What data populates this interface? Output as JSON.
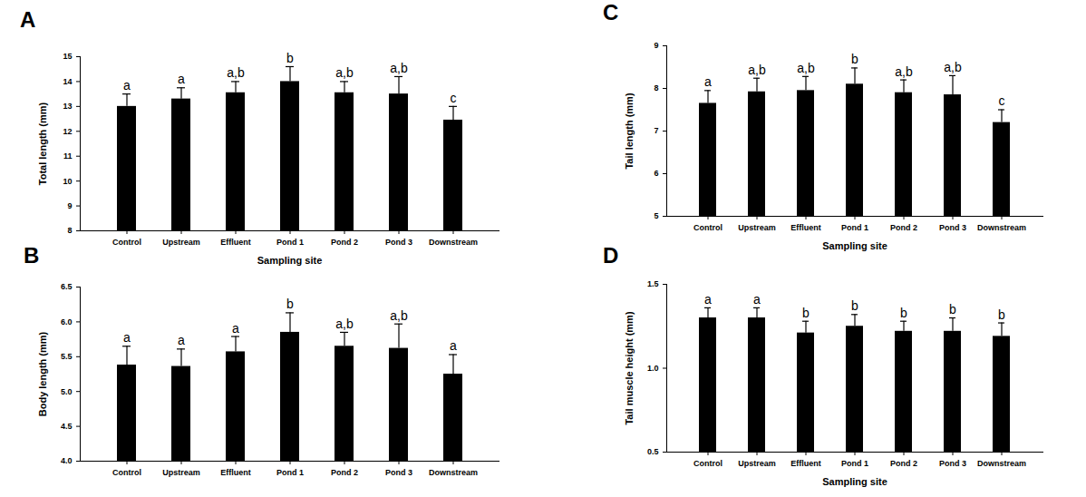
{
  "chart_data": [
    {
      "type": "bar",
      "panel": "A",
      "color": "#000000",
      "categories": [
        "Control",
        "Upstream",
        "Effluent",
        "Pond 1",
        "Pond 2",
        "Pond 3",
        "Downstream"
      ],
      "values": [
        13.0,
        13.3,
        13.55,
        14.0,
        13.55,
        13.5,
        12.45
      ],
      "errors": [
        0.5,
        0.45,
        0.45,
        0.6,
        0.45,
        0.7,
        0.55
      ],
      "letters": [
        "a",
        "a",
        "a,b",
        "b",
        "a,b",
        "a,b",
        "c"
      ],
      "ylabel": "Total length (mm)",
      "xlabel": "Sampling site",
      "ylim": [
        8,
        15
      ],
      "yticks": [
        8,
        9,
        10,
        11,
        12,
        13,
        14,
        15
      ]
    },
    {
      "type": "bar",
      "panel": "B",
      "color": "#000000",
      "categories": [
        "Control",
        "Upstream",
        "Effluent",
        "Pond 1",
        "Pond 2",
        "Pond 3",
        "Downstream"
      ],
      "values": [
        5.38,
        5.36,
        5.57,
        5.85,
        5.65,
        5.62,
        5.25
      ],
      "errors": [
        0.27,
        0.25,
        0.22,
        0.28,
        0.2,
        0.35,
        0.28
      ],
      "letters": [
        "a",
        "a",
        "a",
        "b",
        "a,b",
        "a,b",
        "a"
      ],
      "ylabel": "Body length (mm)",
      "ylim": [
        4.0,
        6.5
      ],
      "yticks": [
        {
          "value": 4.0,
          "label": "4.0"
        },
        {
          "value": 4.5,
          "label": "4.5"
        },
        {
          "value": 5.0,
          "label": "5.0"
        },
        {
          "value": 5.5,
          "label": "5.5"
        },
        {
          "value": 6.0,
          "label": "6.0"
        },
        {
          "value": 6.5,
          "label": "6.5"
        }
      ]
    },
    {
      "type": "bar",
      "panel": "C",
      "color": "#000000",
      "categories": [
        "Control",
        "Upstream",
        "Effluent",
        "Pond 1",
        "Pond 2",
        "Pond 3",
        "Downstream"
      ],
      "values": [
        7.65,
        7.92,
        7.95,
        8.1,
        7.9,
        7.85,
        7.2
      ],
      "errors": [
        0.3,
        0.32,
        0.33,
        0.38,
        0.3,
        0.45,
        0.3
      ],
      "letters": [
        "a",
        "a,b",
        "a,b",
        "b",
        "a,b",
        "a,b",
        "c"
      ],
      "ylabel": "Tail length (mm)",
      "xlabel": "Sampling site",
      "ylim": [
        5,
        9
      ],
      "yticks": [
        5,
        6,
        7,
        8,
        9
      ]
    },
    {
      "type": "bar",
      "panel": "D",
      "color": "#000000",
      "categories": [
        "Control",
        "Upstream",
        "Effluent",
        "Pond 1",
        "Pond 2",
        "Pond 3",
        "Downstream"
      ],
      "values": [
        1.3,
        1.3,
        1.21,
        1.25,
        1.22,
        1.22,
        1.19
      ],
      "errors": [
        0.06,
        0.06,
        0.07,
        0.07,
        0.06,
        0.08,
        0.08
      ],
      "letters": [
        "a",
        "a",
        "b",
        "b",
        "b",
        "b",
        "b"
      ],
      "ylabel": "Tail muscle height (mm)",
      "xlabel": "Sampling site",
      "ylim": [
        0.5,
        1.5
      ],
      "yticks": [
        {
          "value": 0.5,
          "label": "0.5"
        },
        {
          "value": 1.0,
          "label": "1.0"
        },
        {
          "value": 1.5,
          "label": "1.5"
        }
      ]
    }
  ]
}
